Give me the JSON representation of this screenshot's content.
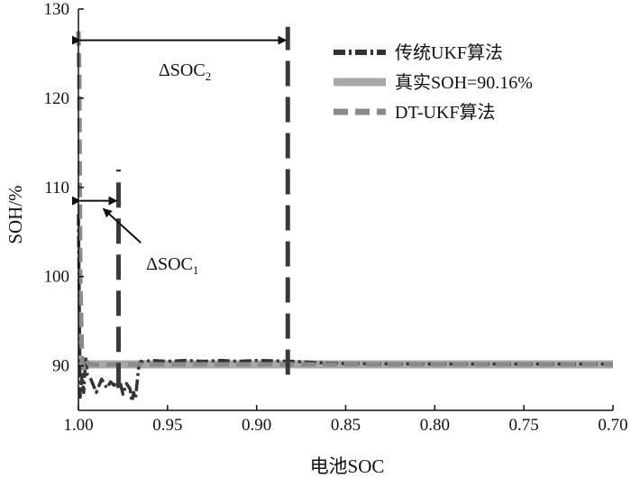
{
  "chart_data": {
    "type": "line",
    "xlabel": "电池SOC",
    "ylabel": "SOH/%",
    "xlim": [
      1.0,
      0.7
    ],
    "ylim": [
      85,
      130
    ],
    "x_reversed": true,
    "xticks": [
      1.0,
      0.95,
      0.9,
      0.85,
      0.8,
      0.75,
      0.7
    ],
    "xtick_labels": [
      "1.00",
      "0.95",
      "0.90",
      "0.85",
      "0.80",
      "0.75",
      "0.70"
    ],
    "yticks": [
      90,
      100,
      110,
      120,
      130
    ],
    "ytick_labels": [
      "90",
      "100",
      "110",
      "120",
      "130"
    ],
    "grid": false,
    "legend_position": "top-right",
    "series": [
      {
        "name": "传统UKF算法",
        "color": "#333333",
        "line_style": "dash-dot",
        "x": [
          1.0,
          0.999,
          0.998,
          0.997,
          0.996,
          0.995,
          0.993,
          0.99,
          0.987,
          0.984,
          0.982,
          0.98,
          0.977,
          0.975,
          0.973,
          0.971,
          0.97,
          0.969,
          0.968,
          0.966,
          0.965,
          0.963,
          0.96,
          0.95,
          0.94,
          0.93,
          0.92,
          0.91,
          0.9,
          0.89,
          0.88,
          0.87,
          0.86,
          0.85,
          0.8,
          0.75,
          0.7
        ],
        "y": [
          107,
          86.5,
          89,
          87,
          91,
          89,
          88.5,
          87,
          88.5,
          87.5,
          88.2,
          87.8,
          88.5,
          86.8,
          88,
          87.4,
          86,
          87,
          86.3,
          90.2,
          90.5,
          90.4,
          90.6,
          90.5,
          90.6,
          90.5,
          90.6,
          90.5,
          90.6,
          90.55,
          90.5,
          90.4,
          90.3,
          90.25,
          90.2,
          90.2,
          90.2
        ]
      },
      {
        "name": "真实SOH=90.16%",
        "color": "#a8a8a8",
        "line_style": "solid",
        "x": [
          1.0,
          0.7
        ],
        "y": [
          90.16,
          90.16
        ]
      },
      {
        "name": "DT-UKF算法",
        "color": "#8a8a8a",
        "line_style": "dashed",
        "x": [
          1.0,
          0.9995,
          0.999,
          0.998,
          0.997,
          0.996,
          0.994,
          0.99,
          0.98,
          0.95,
          0.9,
          0.85,
          0.8,
          0.75,
          0.7
        ],
        "y": [
          127.5,
          122,
          100,
          90.5,
          89.7,
          90.6,
          90.2,
          90.1,
          90.15,
          90.16,
          90.16,
          90.16,
          90.16,
          90.16,
          90.16
        ]
      }
    ],
    "vlines": [
      {
        "x": 0.9775,
        "y": [
          87.5,
          112
        ]
      },
      {
        "x": 0.8825,
        "y": [
          89,
          128
        ]
      }
    ],
    "annotations": [
      {
        "id": "dsoc2",
        "text": "ΔSOC",
        "subscript": "2",
        "x_from": 1.0,
        "x_to": 0.8825,
        "y_arrow": 126.5,
        "label_x": 0.955,
        "label_y": 122.5
      },
      {
        "id": "dsoc1",
        "text": "ΔSOC",
        "subscript": "1",
        "x_from": 1.0,
        "x_to": 0.9775,
        "y_arrow": 108.5,
        "label_x": 0.962,
        "label_y": 100.8,
        "pointer_from": [
          0.965,
          103.8
        ],
        "pointer_to": [
          0.986,
          107.6
        ]
      }
    ]
  }
}
